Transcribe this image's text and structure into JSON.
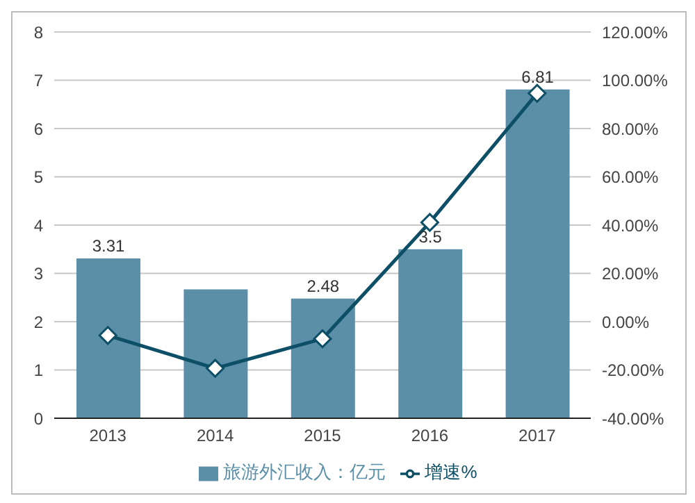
{
  "chart_data": {
    "type": "bar",
    "categories": [
      "2013",
      "2014",
      "2015",
      "2016",
      "2017"
    ],
    "series": [
      {
        "name": "旅游外汇收入：亿元",
        "color": "#5b8fa8",
        "values": [
          3.31,
          2.67,
          2.48,
          3.5,
          6.81
        ],
        "value_labels": [
          "3.31",
          null,
          "2.48",
          "3.5",
          "6.81"
        ]
      },
      {
        "name": "增速%",
        "type": "line",
        "axis": "y2",
        "color": "#0d4f66",
        "values": [
          -5.7,
          -19.3,
          -7.1,
          41.1,
          94.6
        ],
        "marker": "diamond"
      }
    ],
    "ylim": [
      0,
      8
    ],
    "yticks": [
      0,
      1,
      2,
      3,
      4,
      5,
      6,
      7,
      8
    ],
    "y2lim": [
      -40,
      120
    ],
    "y2ticks": [
      {
        "value": -40,
        "label": "-40.00%"
      },
      {
        "value": -20,
        "label": "-20.00%"
      },
      {
        "value": 0,
        "label": "0.00%"
      },
      {
        "value": 20,
        "label": "20.00%"
      },
      {
        "value": 40,
        "label": "40.00%"
      },
      {
        "value": 60,
        "label": "60.00%"
      },
      {
        "value": 80,
        "label": "80.00%"
      },
      {
        "value": 100,
        "label": "100.00%"
      },
      {
        "value": 120,
        "label": "120.00%"
      }
    ],
    "grid": "y",
    "legend": "bottom"
  }
}
